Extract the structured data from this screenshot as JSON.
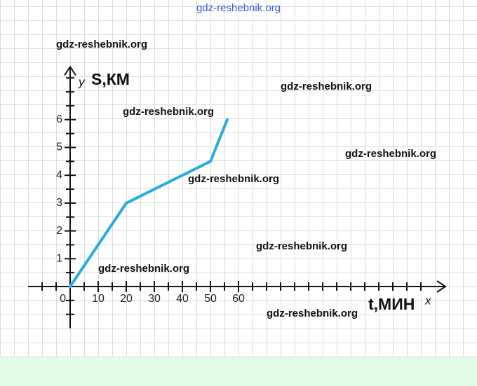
{
  "site_header": "gdz-reshebnik.org",
  "watermarks": [
    "gdz-reshebnik.org",
    "gdz-reshebnik.org",
    "gdz-reshebnik.org",
    "gdz-reshebnik.org",
    "gdz-reshebnik.org",
    "gdz-reshebnik.org",
    "gdz-reshebnik.org",
    "gdz-reshebnik.org"
  ],
  "chart_data": {
    "type": "line",
    "x_label": "t,МИН",
    "x_axis_name": "x",
    "y_label": "S,КМ",
    "y_axis_name": "y",
    "x": [
      0,
      20,
      50,
      56
    ],
    "series": [
      {
        "values": [
          0,
          3,
          4.5,
          6
        ],
        "color": "#29abe2"
      }
    ],
    "xlim": [
      -15,
      133.75
    ],
    "ylim": [
      -1.5,
      7.9
    ],
    "xticks": [
      0,
      10,
      20,
      30,
      40,
      50,
      60
    ],
    "yticks": [
      1,
      2,
      3,
      4,
      5,
      6
    ],
    "xminorticks": [
      -10,
      -5,
      5,
      15,
      25,
      35,
      45,
      55,
      65,
      70,
      75,
      80,
      85,
      90,
      95,
      100,
      105,
      110,
      115,
      120,
      125
    ],
    "yminorticks": [
      -1,
      -0.5,
      0.5,
      1.5,
      2.5,
      3.5,
      4.5,
      5.5,
      6.5,
      7,
      7.5
    ]
  }
}
